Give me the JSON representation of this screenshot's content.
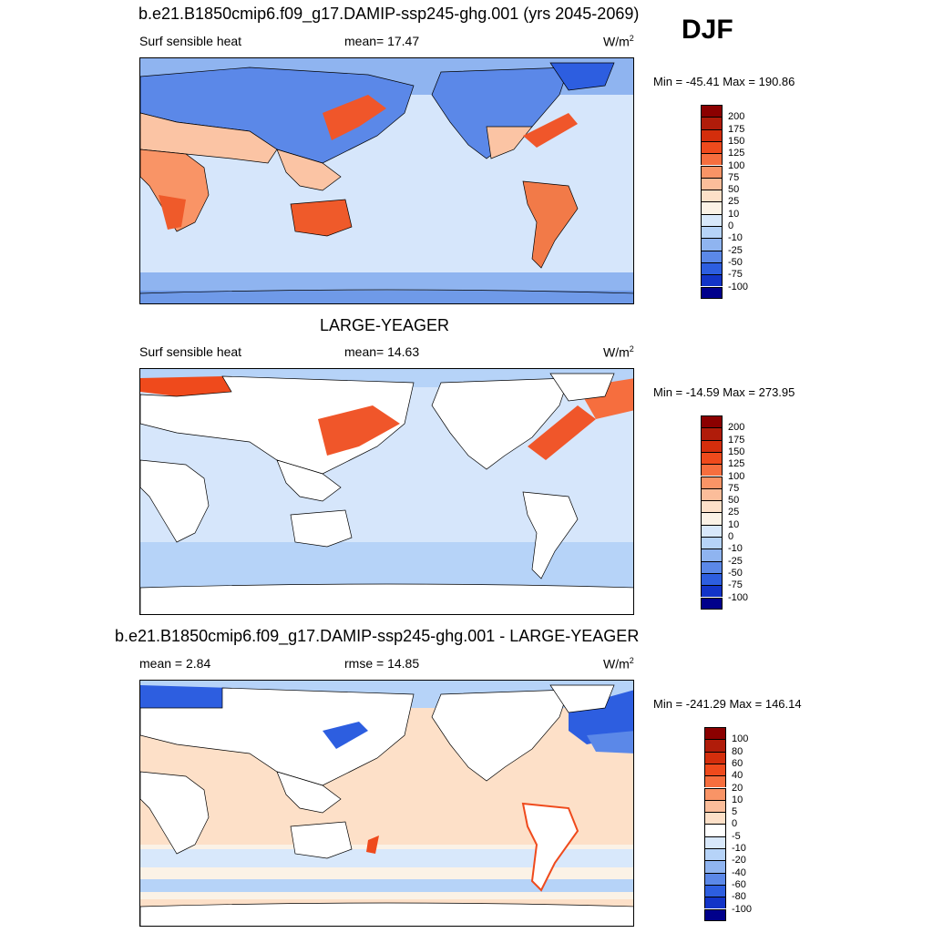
{
  "season": "DJF",
  "panels": [
    {
      "title": "b.e21.B1850cmip6.f09_g17.DAMIP-ssp245-ghg.001 (yrs 2045-2069)",
      "left_label": "Surf sensible heat",
      "center_label": "mean=  17.47",
      "units_base": "W/m",
      "units_exp": "2",
      "minmax": "Min = -45.41 Max = 190.86",
      "colorbar": {
        "labels": [
          "200",
          "175",
          "150",
          "125",
          "100",
          "75",
          "50",
          "25",
          "10",
          "0",
          "-10",
          "-25",
          "-50",
          "-75",
          "-100"
        ],
        "colors": [
          "#8b0000",
          "#b01c0a",
          "#d42e0c",
          "#ef4a1c",
          "#f66e3e",
          "#f99466",
          "#fbbd9a",
          "#fde0c8",
          "#fbf2e6",
          "#d8e8fb",
          "#b6d3f8",
          "#8fb4f0",
          "#5b88e8",
          "#2d5ee0",
          "#1234c8",
          "#00008b"
        ]
      },
      "fields": {
        "ocean_fill": "#d6e6fb",
        "land_fill": "#fbc4a4",
        "patches": [
          {
            "name": "arctic",
            "color": "#6f9ae8"
          },
          {
            "name": "southern-ocean",
            "color": "#8fb4f0"
          },
          {
            "name": "kuroshio",
            "color": "#f0562a"
          },
          {
            "name": "gulf-stream",
            "color": "#f0562a"
          },
          {
            "name": "australia",
            "color": "#ef5a2a"
          },
          {
            "name": "south-america",
            "color": "#f27a48"
          },
          {
            "name": "south-africa",
            "color": "#f27a48"
          },
          {
            "name": "siberia",
            "color": "#5b88e8"
          }
        ]
      }
    },
    {
      "title": "LARGE-YEAGER",
      "left_label": "Surf sensible heat",
      "center_label": "mean=  14.63",
      "units_base": "W/m",
      "units_exp": "2",
      "minmax": "Min = -14.59 Max = 273.95",
      "colorbar": {
        "labels": [
          "200",
          "175",
          "150",
          "125",
          "100",
          "75",
          "50",
          "25",
          "10",
          "0",
          "-10",
          "-25",
          "-50",
          "-75",
          "-100"
        ],
        "colors": [
          "#8b0000",
          "#b01c0a",
          "#d42e0c",
          "#ef4a1c",
          "#f66e3e",
          "#f99466",
          "#fbbd9a",
          "#fde0c8",
          "#fbf2e6",
          "#d8e8fb",
          "#b6d3f8",
          "#8fb4f0",
          "#5b88e8",
          "#2d5ee0",
          "#1234c8",
          "#00008b"
        ]
      },
      "fields": {
        "ocean_fill": "#d6e6fb",
        "land_fill": "#ffffff",
        "patches": [
          {
            "name": "kuroshio",
            "color": "#f0562a"
          },
          {
            "name": "gulf-stream",
            "color": "#f0562a"
          },
          {
            "name": "nordic-seas",
            "color": "#ef4a1c"
          },
          {
            "name": "southern-ocean",
            "color": "#b6d3f8"
          }
        ]
      }
    },
    {
      "title": "b.e21.B1850cmip6.f09_g17.DAMIP-ssp245-ghg.001 - LARGE-YEAGER",
      "left_label": "mean =   2.84",
      "center_label": "rmse =  14.85",
      "units_base": "W/m",
      "units_exp": "2",
      "minmax": "Min = -241.29 Max = 146.14",
      "colorbar": {
        "labels": [
          "100",
          "80",
          "60",
          "40",
          "20",
          "10",
          "5",
          "0",
          "-5",
          "-10",
          "-20",
          "-40",
          "-60",
          "-80",
          "-100"
        ],
        "colors": [
          "#8b0000",
          "#b01c0a",
          "#d42e0c",
          "#ef4a1c",
          "#f66e3e",
          "#f99466",
          "#fbbd9a",
          "#fde0c8",
          "#ffffff",
          "#d8e8fb",
          "#b6d3f8",
          "#8fb4f0",
          "#5b88e8",
          "#2d5ee0",
          "#1234c8",
          "#00008b"
        ]
      },
      "fields": {
        "ocean_fill": "#fde0c8",
        "land_fill": "#ffffff",
        "patches": [
          {
            "name": "north-atlantic",
            "color": "#2d5ee0"
          },
          {
            "name": "arctic",
            "color": "#5b88e8"
          },
          {
            "name": "southern-ocean",
            "color": "#b6d3f8"
          },
          {
            "name": "coastal-warm",
            "color": "#ef4a1c"
          }
        ]
      }
    }
  ]
}
